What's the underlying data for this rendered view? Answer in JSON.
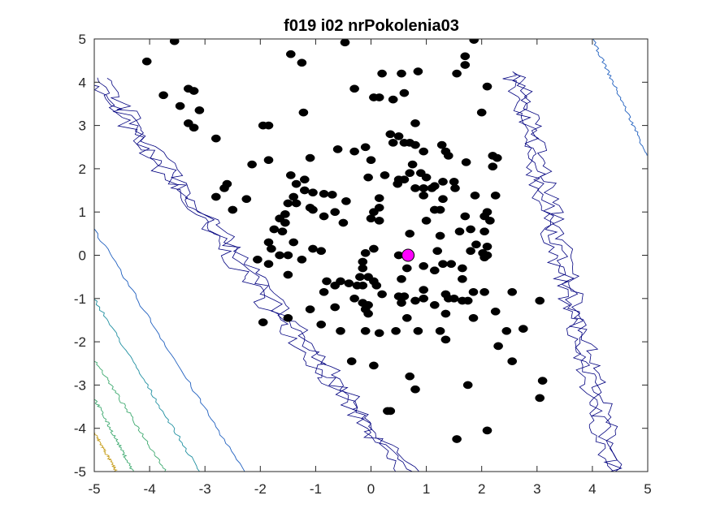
{
  "chart_data": {
    "type": "scatter",
    "title": "f019 i02 nrPokolenia03",
    "xlabel": "",
    "ylabel": "",
    "xlim": [
      -5,
      5
    ],
    "ylim": [
      -5,
      5
    ],
    "xticks": [
      -5,
      -4,
      -3,
      -2,
      -1,
      0,
      1,
      2,
      3,
      4,
      5
    ],
    "yticks": [
      -5,
      -4,
      -3,
      -2,
      -1,
      0,
      1,
      2,
      3,
      4,
      5
    ],
    "xtick_labels": [
      "-5",
      "-4",
      "-3",
      "-2",
      "-1",
      "0",
      "1",
      "2",
      "3",
      "4",
      "5"
    ],
    "ytick_labels": [
      "-5",
      "-4",
      "-3",
      "-2",
      "-1",
      "0",
      "1",
      "2",
      "3",
      "4",
      "5"
    ],
    "grid": false,
    "background_contours": {
      "style": "contour",
      "colors": [
        "#00007f",
        "#1f5fbf",
        "#1f8fa0",
        "#3faa70",
        "#c8a020"
      ]
    },
    "series": [
      {
        "marker_color": "#000000",
        "points": [
          [
            -3.55,
            4.95
          ],
          [
            1.86,
            4.98
          ],
          [
            -0.47,
            4.92
          ],
          [
            -1.45,
            4.65
          ],
          [
            -4.05,
            4.48
          ],
          [
            -1.25,
            4.45
          ],
          [
            1.7,
            4.6
          ],
          [
            1.7,
            4.4
          ],
          [
            1.55,
            4.2
          ],
          [
            0.2,
            4.2
          ],
          [
            0.55,
            4.2
          ],
          [
            0.85,
            4.25
          ],
          [
            2.1,
            3.9
          ],
          [
            -0.3,
            3.85
          ],
          [
            0.6,
            3.75
          ],
          [
            0.05,
            3.65
          ],
          [
            0.15,
            3.65
          ],
          [
            0.4,
            3.6
          ],
          [
            -3.75,
            3.7
          ],
          [
            -3.3,
            3.85
          ],
          [
            -3.2,
            3.8
          ],
          [
            -3.45,
            3.45
          ],
          [
            -3.1,
            3.35
          ],
          [
            -1.22,
            3.3
          ],
          [
            2.0,
            3.3
          ],
          [
            -3.3,
            3.05
          ],
          [
            -3.2,
            2.95
          ],
          [
            -2.8,
            2.7
          ],
          [
            -1.95,
            3.0
          ],
          [
            -1.85,
            3.0
          ],
          [
            0.8,
            3.05
          ],
          [
            0.35,
            2.8
          ],
          [
            0.5,
            2.75
          ],
          [
            0.4,
            2.6
          ],
          [
            0.6,
            2.6
          ],
          [
            0.7,
            2.6
          ],
          [
            0.8,
            2.55
          ],
          [
            1.28,
            2.55
          ],
          [
            0.95,
            2.4
          ],
          [
            -0.1,
            2.5
          ],
          [
            -0.3,
            2.4
          ],
          [
            -0.6,
            2.45
          ],
          [
            1.35,
            2.4
          ],
          [
            1.4,
            2.3
          ],
          [
            2.2,
            2.3
          ],
          [
            2.28,
            2.25
          ],
          [
            -1.1,
            2.25
          ],
          [
            0.0,
            2.2
          ],
          [
            -1.85,
            2.2
          ],
          [
            -2.15,
            2.1
          ],
          [
            1.72,
            2.15
          ],
          [
            0.75,
            2.1
          ],
          [
            2.2,
            2.05
          ],
          [
            1.0,
            1.8
          ],
          [
            0.9,
            1.9
          ],
          [
            0.7,
            1.9
          ],
          [
            0.25,
            1.85
          ],
          [
            -0.05,
            1.8
          ],
          [
            -1.45,
            1.85
          ],
          [
            -1.2,
            1.75
          ],
          [
            -1.35,
            1.65
          ],
          [
            0.5,
            1.75
          ],
          [
            0.48,
            1.65
          ],
          [
            0.6,
            1.75
          ],
          [
            1.15,
            1.6
          ],
          [
            1.3,
            1.7
          ],
          [
            0.8,
            1.55
          ],
          [
            0.95,
            1.55
          ],
          [
            1.1,
            1.55
          ],
          [
            1.5,
            1.7
          ],
          [
            1.52,
            1.55
          ],
          [
            -2.6,
            1.65
          ],
          [
            -2.65,
            1.55
          ],
          [
            -1.2,
            1.5
          ],
          [
            -1.05,
            1.45
          ],
          [
            -0.85,
            1.42
          ],
          [
            -0.7,
            1.4
          ],
          [
            -1.4,
            1.35
          ],
          [
            -0.45,
            1.25
          ],
          [
            0.95,
            1.38
          ],
          [
            1.3,
            1.3
          ],
          [
            1.88,
            1.38
          ],
          [
            2.25,
            1.38
          ],
          [
            0.15,
            1.32
          ],
          [
            -2.8,
            1.35
          ],
          [
            -2.25,
            1.3
          ],
          [
            -1.5,
            1.2
          ],
          [
            -1.35,
            1.2
          ],
          [
            -1.1,
            1.1
          ],
          [
            -1.05,
            1.05
          ],
          [
            -0.65,
            1.0
          ],
          [
            -2.5,
            1.05
          ],
          [
            0.15,
            1.1
          ],
          [
            0.05,
            1.0
          ],
          [
            1.15,
            1.05
          ],
          [
            1.25,
            1.05
          ],
          [
            2.1,
            1.0
          ],
          [
            -1.55,
            0.95
          ],
          [
            -1.65,
            0.85
          ],
          [
            -0.85,
            0.9
          ],
          [
            -0.5,
            0.75
          ],
          [
            0.0,
            0.85
          ],
          [
            0.15,
            0.8
          ],
          [
            1.0,
            0.8
          ],
          [
            1.7,
            0.9
          ],
          [
            2.05,
            0.9
          ],
          [
            -1.55,
            0.75
          ],
          [
            -1.6,
            0.55
          ],
          [
            -1.75,
            0.6
          ],
          [
            2.15,
            0.8
          ],
          [
            2.05,
            0.55
          ],
          [
            1.6,
            0.55
          ],
          [
            1.8,
            0.6
          ],
          [
            0.7,
            0.5
          ],
          [
            1.25,
            0.45
          ],
          [
            -1.85,
            0.3
          ],
          [
            -1.4,
            0.3
          ],
          [
            -1.5,
            0.0
          ],
          [
            -1.65,
            0.0
          ],
          [
            -1.05,
            0.15
          ],
          [
            -0.9,
            0.1
          ],
          [
            0.05,
            0.15
          ],
          [
            1.2,
            0.1
          ],
          [
            1.9,
            0.25
          ],
          [
            2.1,
            0.2
          ],
          [
            -1.8,
            0.15
          ],
          [
            1.8,
            0.1
          ],
          [
            2.02,
            0.05
          ],
          [
            2.1,
            0.0
          ],
          [
            2.05,
            -0.05
          ],
          [
            0.5,
            0.0
          ],
          [
            -0.1,
            0.05
          ],
          [
            -1.25,
            -0.1
          ],
          [
            -2.05,
            -0.1
          ],
          [
            -0.15,
            -0.15
          ],
          [
            1.3,
            -0.2
          ],
          [
            1.45,
            -0.2
          ],
          [
            0.95,
            -0.25
          ],
          [
            1.15,
            -0.35
          ],
          [
            1.65,
            -0.3
          ],
          [
            -0.15,
            -0.3
          ],
          [
            0.65,
            -0.3
          ],
          [
            -1.5,
            -0.45
          ],
          [
            -1.85,
            -0.2
          ],
          [
            -0.2,
            -0.5
          ],
          [
            -0.05,
            -0.5
          ],
          [
            0.55,
            -0.55
          ],
          [
            1.65,
            -0.55
          ],
          [
            -0.55,
            -0.6
          ],
          [
            -0.8,
            -0.6
          ],
          [
            -0.65,
            -0.7
          ],
          [
            -0.4,
            -0.65
          ],
          [
            -0.25,
            -0.7
          ],
          [
            -0.15,
            -0.7
          ],
          [
            0.05,
            -0.6
          ],
          [
            0.1,
            -0.7
          ],
          [
            -0.85,
            -0.85
          ],
          [
            0.95,
            -0.8
          ],
          [
            1.35,
            -0.9
          ],
          [
            1.4,
            -1.0
          ],
          [
            1.5,
            -1.0
          ],
          [
            1.65,
            -1.05
          ],
          [
            0.5,
            -0.95
          ],
          [
            0.6,
            -0.95
          ],
          [
            1.85,
            -0.85
          ],
          [
            2.05,
            -0.85
          ],
          [
            2.55,
            -0.85
          ],
          [
            0.2,
            -0.9
          ],
          [
            -0.3,
            -1.0
          ],
          [
            -0.15,
            -1.1
          ],
          [
            -0.05,
            -1.15
          ],
          [
            0.95,
            -1.0
          ],
          [
            1.15,
            -1.15
          ],
          [
            1.75,
            -1.05
          ],
          [
            -0.65,
            -1.2
          ],
          [
            -1.1,
            -1.25
          ],
          [
            0.55,
            -1.1
          ],
          [
            0.8,
            -1.05
          ],
          [
            -0.1,
            -1.25
          ],
          [
            -0.05,
            -1.35
          ],
          [
            0.65,
            -1.45
          ],
          [
            2.25,
            -1.3
          ],
          [
            1.85,
            -1.45
          ],
          [
            3.05,
            -1.05
          ],
          [
            1.35,
            -1.35
          ],
          [
            -0.9,
            -1.6
          ],
          [
            -1.5,
            -1.45
          ],
          [
            -1.95,
            -1.55
          ],
          [
            -0.55,
            -1.75
          ],
          [
            -0.1,
            -1.75
          ],
          [
            0.15,
            -1.8
          ],
          [
            0.45,
            -1.75
          ],
          [
            0.85,
            -1.75
          ],
          [
            1.25,
            -1.75
          ],
          [
            2.45,
            -1.75
          ],
          [
            1.35,
            -1.95
          ],
          [
            2.75,
            -1.7
          ],
          [
            2.3,
            -2.1
          ],
          [
            -0.35,
            -2.45
          ],
          [
            0.05,
            -2.55
          ],
          [
            2.55,
            -2.45
          ],
          [
            0.7,
            -2.8
          ],
          [
            0.8,
            -3.1
          ],
          [
            1.75,
            -3.0
          ],
          [
            3.1,
            -2.9
          ],
          [
            3.05,
            -3.3
          ],
          [
            0.35,
            -3.6
          ],
          [
            0.3,
            -3.6
          ],
          [
            1.55,
            -4.25
          ],
          [
            2.1,
            -4.05
          ]
        ]
      },
      {
        "marker_color": "#ff00ff",
        "points": [
          [
            0.67,
            0.0
          ]
        ]
      }
    ]
  }
}
